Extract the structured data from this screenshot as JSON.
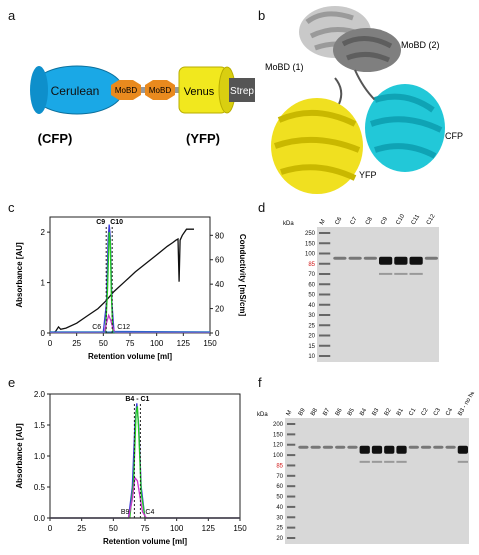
{
  "panel_labels": {
    "a": "a",
    "b": "b",
    "c": "c",
    "d": "d",
    "e": "e",
    "f": "f"
  },
  "construct": {
    "cerulean": "Cerulean",
    "mobd1": "MoBD",
    "mobd2": "MoBD",
    "venus": "Venus",
    "strep": "Strep",
    "cfp_label": "(CFP)",
    "yfp_label": "(YFP)",
    "colors": {
      "cerulean": "#1aa8e6",
      "mobd": "#e98a1e",
      "venus": "#f1e81e",
      "strep": "#555555"
    }
  },
  "structure": {
    "mobd1": "MoBD (1)",
    "mobd2": "MoBD (2)",
    "cfp": "CFP",
    "yfp": "YFP",
    "colors": {
      "mobd1": "#b8b8b8",
      "mobd2": "#7a7a7a",
      "cfp": "#22c8d8",
      "yfp": "#f0e020"
    }
  },
  "chart_data": [
    {
      "type": "line",
      "panel": "c",
      "xlabel": "Retention volume [ml]",
      "ylabel": "Absorbance [AU]",
      "y2label": "Conductivity [mS/cm]",
      "xlim": [
        0,
        150
      ],
      "ylim": [
        0,
        2.3
      ],
      "y2lim": [
        0,
        95
      ],
      "xticks": [
        "0",
        "25",
        "50",
        "75",
        "100",
        "125",
        "150"
      ],
      "yticks": [
        "0",
        "1",
        "2"
      ],
      "y2ticks": [
        "0",
        "20",
        "40",
        "60",
        "80"
      ],
      "annotations": {
        "top": "C9",
        "top2": "C10",
        "left": "C6",
        "right": "C12"
      },
      "series": [
        {
          "color": "#111111",
          "x": [
            0,
            5,
            8,
            10,
            15,
            25,
            35,
            45,
            52,
            56,
            60,
            70,
            80,
            90,
            100,
            110,
            115,
            118,
            120,
            121,
            122,
            124,
            128,
            135
          ],
          "y2": [
            0,
            1,
            5,
            3,
            4,
            8,
            14,
            20,
            26,
            30,
            34,
            42,
            50,
            57,
            64,
            71,
            74,
            76,
            77,
            42,
            76,
            80,
            85,
            85
          ]
        },
        {
          "color": "#3b3bd8",
          "x": [
            0,
            50,
            53,
            54.5,
            55.5,
            56.5,
            58,
            60,
            150
          ],
          "y": [
            0.02,
            0.02,
            0.6,
            1.85,
            2.15,
            1.9,
            0.6,
            0.03,
            0.02
          ]
        },
        {
          "color": "#22cc22",
          "x": [
            0,
            52,
            54,
            55.5,
            56.5,
            57.5,
            59,
            150
          ],
          "y": [
            0.01,
            0.01,
            0.9,
            2.0,
            1.8,
            0.8,
            0.01,
            0.01
          ]
        },
        {
          "color": "#cc33cc",
          "x": [
            0,
            51,
            53,
            55,
            57,
            59,
            61,
            150
          ],
          "y": [
            0.01,
            0.01,
            0.2,
            0.35,
            0.25,
            0.1,
            0.01,
            0.01
          ]
        },
        {
          "color": "#2a7fbf",
          "x": [
            0,
            150
          ],
          "y": [
            0.02,
            0.02
          ]
        }
      ]
    },
    {
      "type": "line",
      "panel": "e",
      "xlabel": "Retention volume [ml]",
      "ylabel": "Absorbance [AU]",
      "xlim": [
        0,
        150
      ],
      "ylim": [
        0,
        2.0
      ],
      "xticks": [
        "0",
        "25",
        "50",
        "75",
        "100",
        "125",
        "150"
      ],
      "yticks": [
        "0.0",
        "0.5",
        "1.0",
        "1.5",
        "2.0"
      ],
      "annotations": {
        "top": "B4 - C1",
        "left": "B9",
        "right": "C4"
      },
      "series": [
        {
          "color": "#3b3bd8",
          "x": [
            0,
            62,
            65,
            67,
            68.5,
            70,
            72,
            75,
            150
          ],
          "y": [
            0.0,
            0.0,
            0.5,
            1.5,
            1.85,
            1.5,
            0.5,
            0.0,
            0.0
          ]
        },
        {
          "color": "#22cc22",
          "x": [
            0,
            63,
            66,
            68,
            69,
            70,
            72,
            75,
            150
          ],
          "y": [
            0.0,
            0.0,
            0.6,
            1.7,
            1.8,
            1.4,
            0.4,
            0.0,
            0.0
          ]
        },
        {
          "color": "#cc33cc",
          "x": [
            0,
            62,
            65,
            67,
            69,
            71,
            73,
            76,
            150
          ],
          "y": [
            0.0,
            0.0,
            0.3,
            0.65,
            0.6,
            0.35,
            0.1,
            0.0,
            0.0
          ]
        },
        {
          "color": "#333333",
          "x": [
            0,
            150
          ],
          "y": [
            0.0,
            0.0
          ]
        }
      ]
    }
  ],
  "gel_d": {
    "kda": "kDa",
    "lanes": [
      "M",
      "C6",
      "C7",
      "C8",
      "C9",
      "C10",
      "C11",
      "C12"
    ],
    "markers": [
      "250",
      "150",
      "100",
      "85",
      "70",
      "60",
      "50",
      "40",
      "30",
      "25",
      "20",
      "15",
      "10"
    ],
    "highlight": "85"
  },
  "gel_f": {
    "kda": "kDa",
    "lanes": [
      "M",
      "B9",
      "B8",
      "B7",
      "B6",
      "B5",
      "B4",
      "B3",
      "B2",
      "B1",
      "C1",
      "C2",
      "C3",
      "C4",
      "B3 - no heat"
    ],
    "markers": [
      "200",
      "150",
      "120",
      "100",
      "85",
      "70",
      "60",
      "50",
      "40",
      "30",
      "25",
      "20"
    ],
    "highlight": "85"
  }
}
